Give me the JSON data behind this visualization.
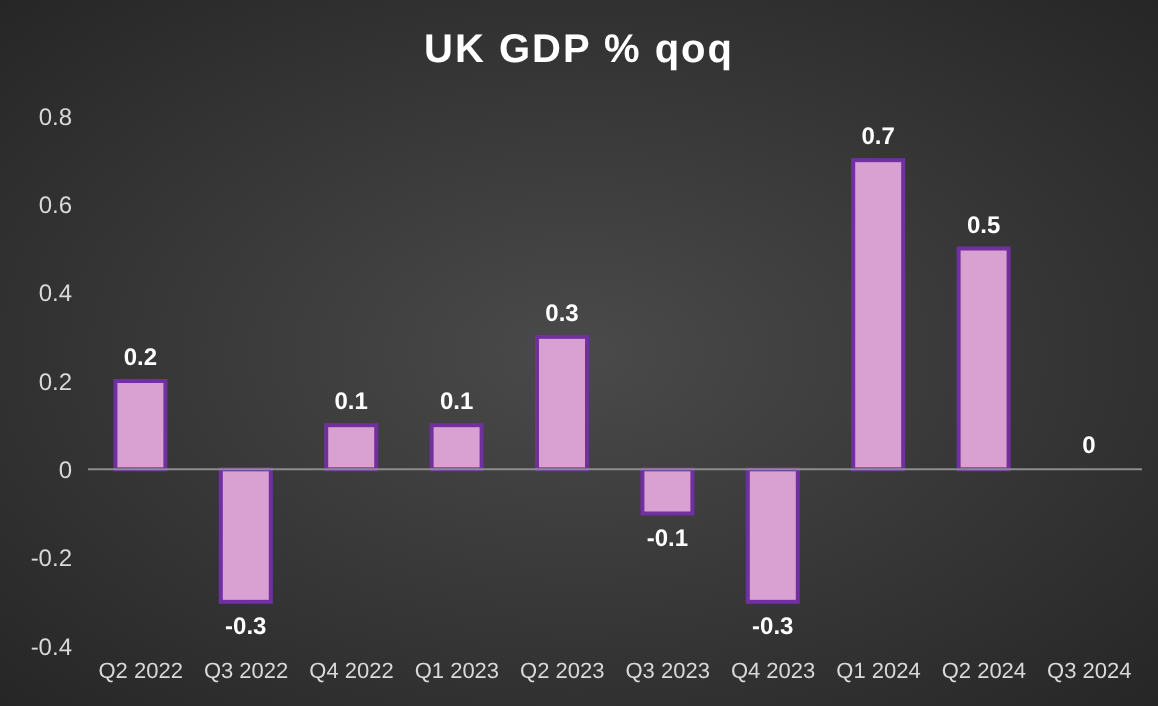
{
  "chart_data": {
    "type": "bar",
    "title": "UK GDP % qoq",
    "categories": [
      "Q2 2022",
      "Q3 2022",
      "Q4 2022",
      "Q1 2023",
      "Q2 2023",
      "Q3 2023",
      "Q4 2023",
      "Q1 2024",
      "Q2 2024",
      "Q3 2024"
    ],
    "values": [
      0.2,
      -0.3,
      0.1,
      0.1,
      0.3,
      -0.1,
      -0.3,
      0.7,
      0.5,
      0
    ],
    "color": "#d9a0d2",
    "ylim": [
      -0.4,
      0.8
    ],
    "yticks": [
      -0.4,
      -0.2,
      0,
      0.2,
      0.4,
      0.6,
      0.8
    ],
    "ref_lines": [
      {
        "axis": "y",
        "value": 0,
        "color": "#8c8c8c"
      }
    ],
    "grid": false,
    "data_labels": true
  }
}
